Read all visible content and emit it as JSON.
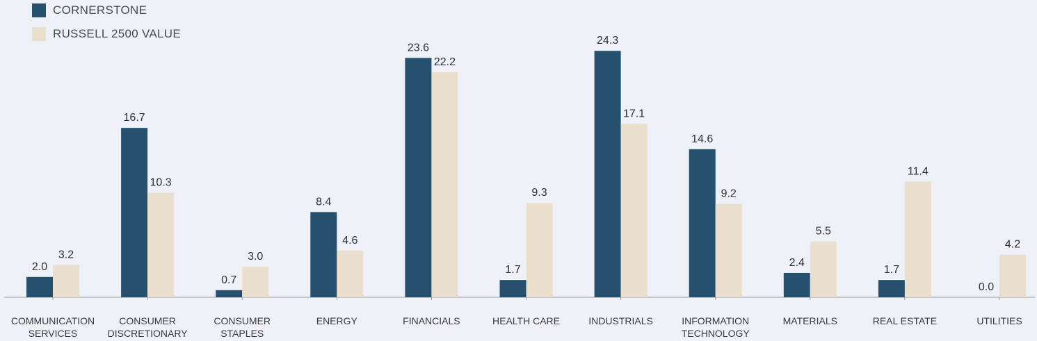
{
  "chart_data": {
    "type": "bar",
    "categories": [
      [
        "COMMUNICATION",
        "SERVICES"
      ],
      [
        "CONSUMER",
        "DISCRETIONARY"
      ],
      [
        "CONSUMER",
        "STAPLES"
      ],
      [
        "ENERGY"
      ],
      [
        "FINANCIALS"
      ],
      [
        "HEALTH CARE"
      ],
      [
        "INDUSTRIALS"
      ],
      [
        "INFORMATION",
        "TECHNOLOGY"
      ],
      [
        "MATERIALS"
      ],
      [
        "REAL ESTATE"
      ],
      [
        "UTILITIES"
      ]
    ],
    "series": [
      {
        "name": "CORNERSTONE",
        "color": "#25506e",
        "values": [
          2.0,
          16.7,
          0.7,
          8.4,
          23.6,
          1.7,
          24.3,
          14.6,
          2.4,
          1.7,
          0.0
        ],
        "labels": [
          "2.0",
          "16.7",
          "0.7",
          "8.4",
          "23.6",
          "1.7",
          "24.3",
          "14.6",
          "2.4",
          "1.7",
          "0.0"
        ]
      },
      {
        "name": "RUSSELL 2500 VALUE",
        "color": "#e9dfcc",
        "values": [
          3.2,
          10.3,
          3.0,
          4.6,
          22.2,
          9.3,
          17.1,
          9.2,
          5.5,
          11.4,
          4.2
        ],
        "labels": [
          "3.2",
          "10.3",
          "3.0",
          "4.6",
          "22.2",
          "9.3",
          "17.1",
          "9.2",
          "5.5",
          "11.4",
          "4.2"
        ]
      }
    ],
    "ylim": [
      0,
      25
    ],
    "grid": false,
    "legend": "top-left",
    "axis_color": "#9a9a9a"
  }
}
